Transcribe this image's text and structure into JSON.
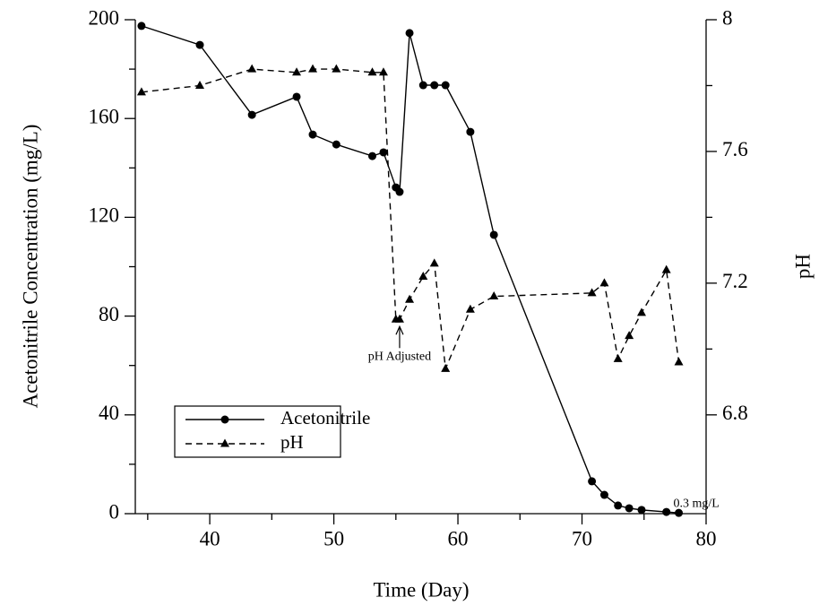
{
  "chart_data": {
    "type": "line",
    "x_label": "Time (Day)",
    "y_label": "Acetonitrile Concentration (mg/L)",
    "y2_label": "pH",
    "xlim": [
      34,
      80
    ],
    "xticks": [
      40,
      50,
      60,
      70,
      80
    ],
    "ylim": [
      0,
      200
    ],
    "yticks": [
      0,
      40,
      80,
      120,
      160,
      200
    ],
    "y2lim": [
      6.5,
      8
    ],
    "y2ticks": [
      6.8,
      7.2,
      7.6,
      {
        "value": 8,
        "label": "8"
      }
    ],
    "x": [
      34.5,
      39.2,
      43.4,
      47.0,
      48.3,
      50.2,
      53.1,
      54.0,
      55.0,
      55.3,
      56.1,
      57.2,
      58.1,
      59.0,
      61.0,
      62.9,
      70.8,
      71.8,
      72.9,
      73.8,
      74.8,
      76.8,
      77.8
    ],
    "series": [
      {
        "name": "Acetonitrile",
        "color": "#000000",
        "marker": "circle",
        "dashed": false,
        "values": [
          197.5,
          189.8,
          161.5,
          168.8,
          153.5,
          149.5,
          144.8,
          146.3,
          132.1,
          130.3,
          194.6,
          173.5,
          173.5,
          173.5,
          154.6,
          112.9,
          13.1,
          7.6,
          3.3,
          2.2,
          1.5,
          0.7,
          0.3
        ]
      },
      {
        "name": "pH",
        "color": "#000000",
        "marker": "triangle",
        "dashed": true,
        "axis": "y2",
        "values": [
          7.78,
          7.8,
          7.85,
          7.84,
          7.85,
          7.85,
          7.84,
          7.84,
          7.09,
          7.09,
          7.15,
          7.22,
          7.26,
          6.94,
          7.12,
          7.16,
          7.17,
          7.2,
          6.97,
          7.04,
          7.11,
          7.24,
          6.96
        ]
      }
    ],
    "annotations": [
      "pH Adjusted",
      "0.3 mg/L"
    ],
    "legend": "lower-left"
  }
}
